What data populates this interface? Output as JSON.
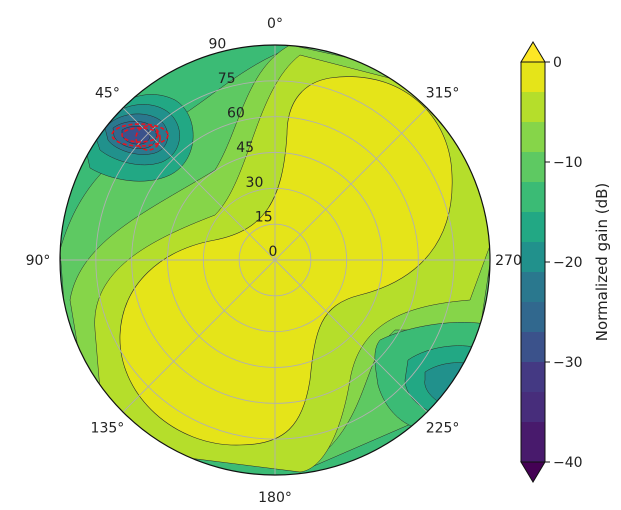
{
  "chart_data": {
    "type": "heatmap",
    "subtype": "polar-filled-contour",
    "title": "",
    "angular_ticks": [
      {
        "deg": 0,
        "label": "0°"
      },
      {
        "deg": 45,
        "label": "45°"
      },
      {
        "deg": 90,
        "label": "90°"
      },
      {
        "deg": 135,
        "label": "135°"
      },
      {
        "deg": 180,
        "label": "180°"
      },
      {
        "deg": 225,
        "label": "225°"
      },
      {
        "deg": 270,
        "label": "270°"
      },
      {
        "deg": 315,
        "label": "315°"
      }
    ],
    "angular_direction": "counterclockwise",
    "angular_zero": "top",
    "radial_ticks": [
      {
        "value": 0,
        "label": "0"
      },
      {
        "value": 15,
        "label": "15"
      },
      {
        "value": 30,
        "label": "30"
      },
      {
        "value": 45,
        "label": "45"
      },
      {
        "value": 60,
        "label": "60"
      },
      {
        "value": 75,
        "label": "75"
      },
      {
        "value": 90,
        "label": "90"
      }
    ],
    "radial_range": [
      0,
      90
    ],
    "grid": true,
    "colorbar": {
      "label": "Normalized gain (dB)",
      "range": [
        -40,
        0
      ],
      "ticks": [
        {
          "value": 0,
          "label": "0"
        },
        {
          "value": -10,
          "label": "−10"
        },
        {
          "value": -20,
          "label": "−20"
        },
        {
          "value": -30,
          "label": "−30"
        },
        {
          "value": -40,
          "label": "−40"
        }
      ],
      "levels": [
        0,
        -3,
        -6,
        -9,
        -12,
        -15,
        -18,
        -21,
        -24,
        -27,
        -30,
        -33,
        -36,
        -40
      ],
      "extend": "both",
      "colormap": "viridis"
    },
    "contour_regions": [
      {
        "level_db": -3,
        "description": "main lobe",
        "azimuth_center_deg": 315,
        "elevation_extent": [
          0,
          90
        ],
        "color": "#e5e419"
      },
      {
        "level_db": -3,
        "description": "main lobe",
        "azimuth_center_deg": 135,
        "elevation_extent": [
          0,
          88
        ],
        "color": "#e5e419"
      },
      {
        "level_db": -6,
        "color": "#b5de2b"
      },
      {
        "level_db": -9,
        "color": "#86d549"
      },
      {
        "level_db": -12,
        "color": "#5ec962"
      },
      {
        "level_db": -15,
        "color": "#3bbb75"
      },
      {
        "level_db": -18,
        "color": "#22a884"
      },
      {
        "level_db": -24,
        "description": "null near 45° azimuth",
        "azimuth_center_deg": 38,
        "elevation_center": 73,
        "color": "#2a788e"
      },
      {
        "level_db": -21,
        "description": "low region near 240° azimuth",
        "azimuth_center_deg": 240,
        "elevation_center": 78,
        "color": "#21918c"
      }
    ],
    "markers": [
      {
        "description": "red dashed contour around null",
        "azimuth_deg": 37,
        "elevation": 74,
        "color": "#e8141f"
      }
    ]
  }
}
